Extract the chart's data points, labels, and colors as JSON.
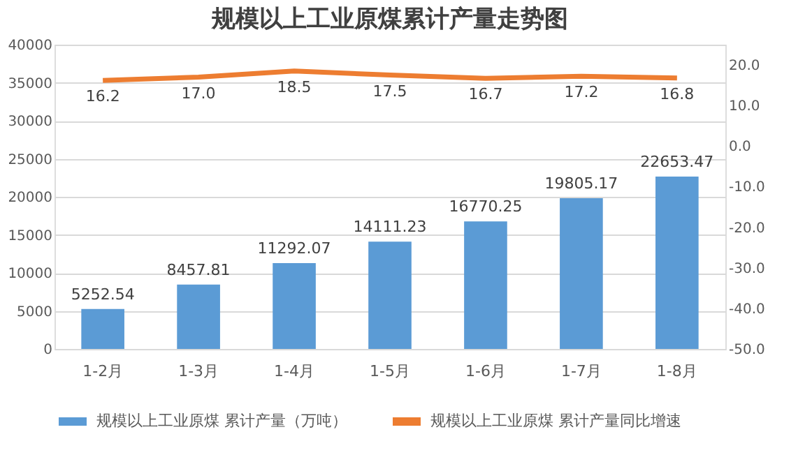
{
  "chart_data": {
    "type": "bar",
    "title": "规模以上工业原煤累计产量走势图",
    "categories": [
      "1-2月",
      "1-3月",
      "1-4月",
      "1-5月",
      "1-6月",
      "1-7月",
      "1-8月"
    ],
    "series": [
      {
        "name": "规模以上工业原煤 累计产量（万吨）",
        "type": "bar",
        "color": "#5b9bd5",
        "values": [
          5252.54,
          8457.81,
          11292.07,
          14111.23,
          16770.25,
          19805.17,
          22653.47
        ],
        "value_labels": [
          "5252.54",
          "8457.81",
          "11292.07",
          "14111.23",
          "16770.25",
          "19805.17",
          "22653.47"
        ]
      },
      {
        "name": "规模以上工业原煤 累计产量同比增速",
        "type": "line",
        "axis": "y2",
        "color": "#ed7d31",
        "values": [
          16.2,
          17.0,
          18.5,
          17.5,
          16.7,
          17.2,
          16.8
        ],
        "value_labels": [
          "16.2",
          "17.0",
          "18.5",
          "17.5",
          "16.7",
          "17.2",
          "16.8"
        ]
      }
    ],
    "ylim": [
      0,
      40000
    ],
    "yticks": [
      0,
      5000,
      10000,
      15000,
      20000,
      25000,
      30000,
      35000,
      40000
    ],
    "y2lim": [
      -50,
      25
    ],
    "y2ticks": [
      {
        "value": -50,
        "label": "-50.0"
      },
      {
        "value": -40,
        "label": "-40.0"
      },
      {
        "value": -30,
        "label": "-30.0"
      },
      {
        "value": -20,
        "label": "-20.0"
      },
      {
        "value": -10,
        "label": "-10.0"
      },
      {
        "value": 0,
        "label": "0.0"
      },
      {
        "value": 10,
        "label": "10.0"
      },
      {
        "value": 20,
        "label": "20.0"
      }
    ],
    "grid": "y",
    "legend": "bottom",
    "marker": "none",
    "line_style": "solid"
  }
}
